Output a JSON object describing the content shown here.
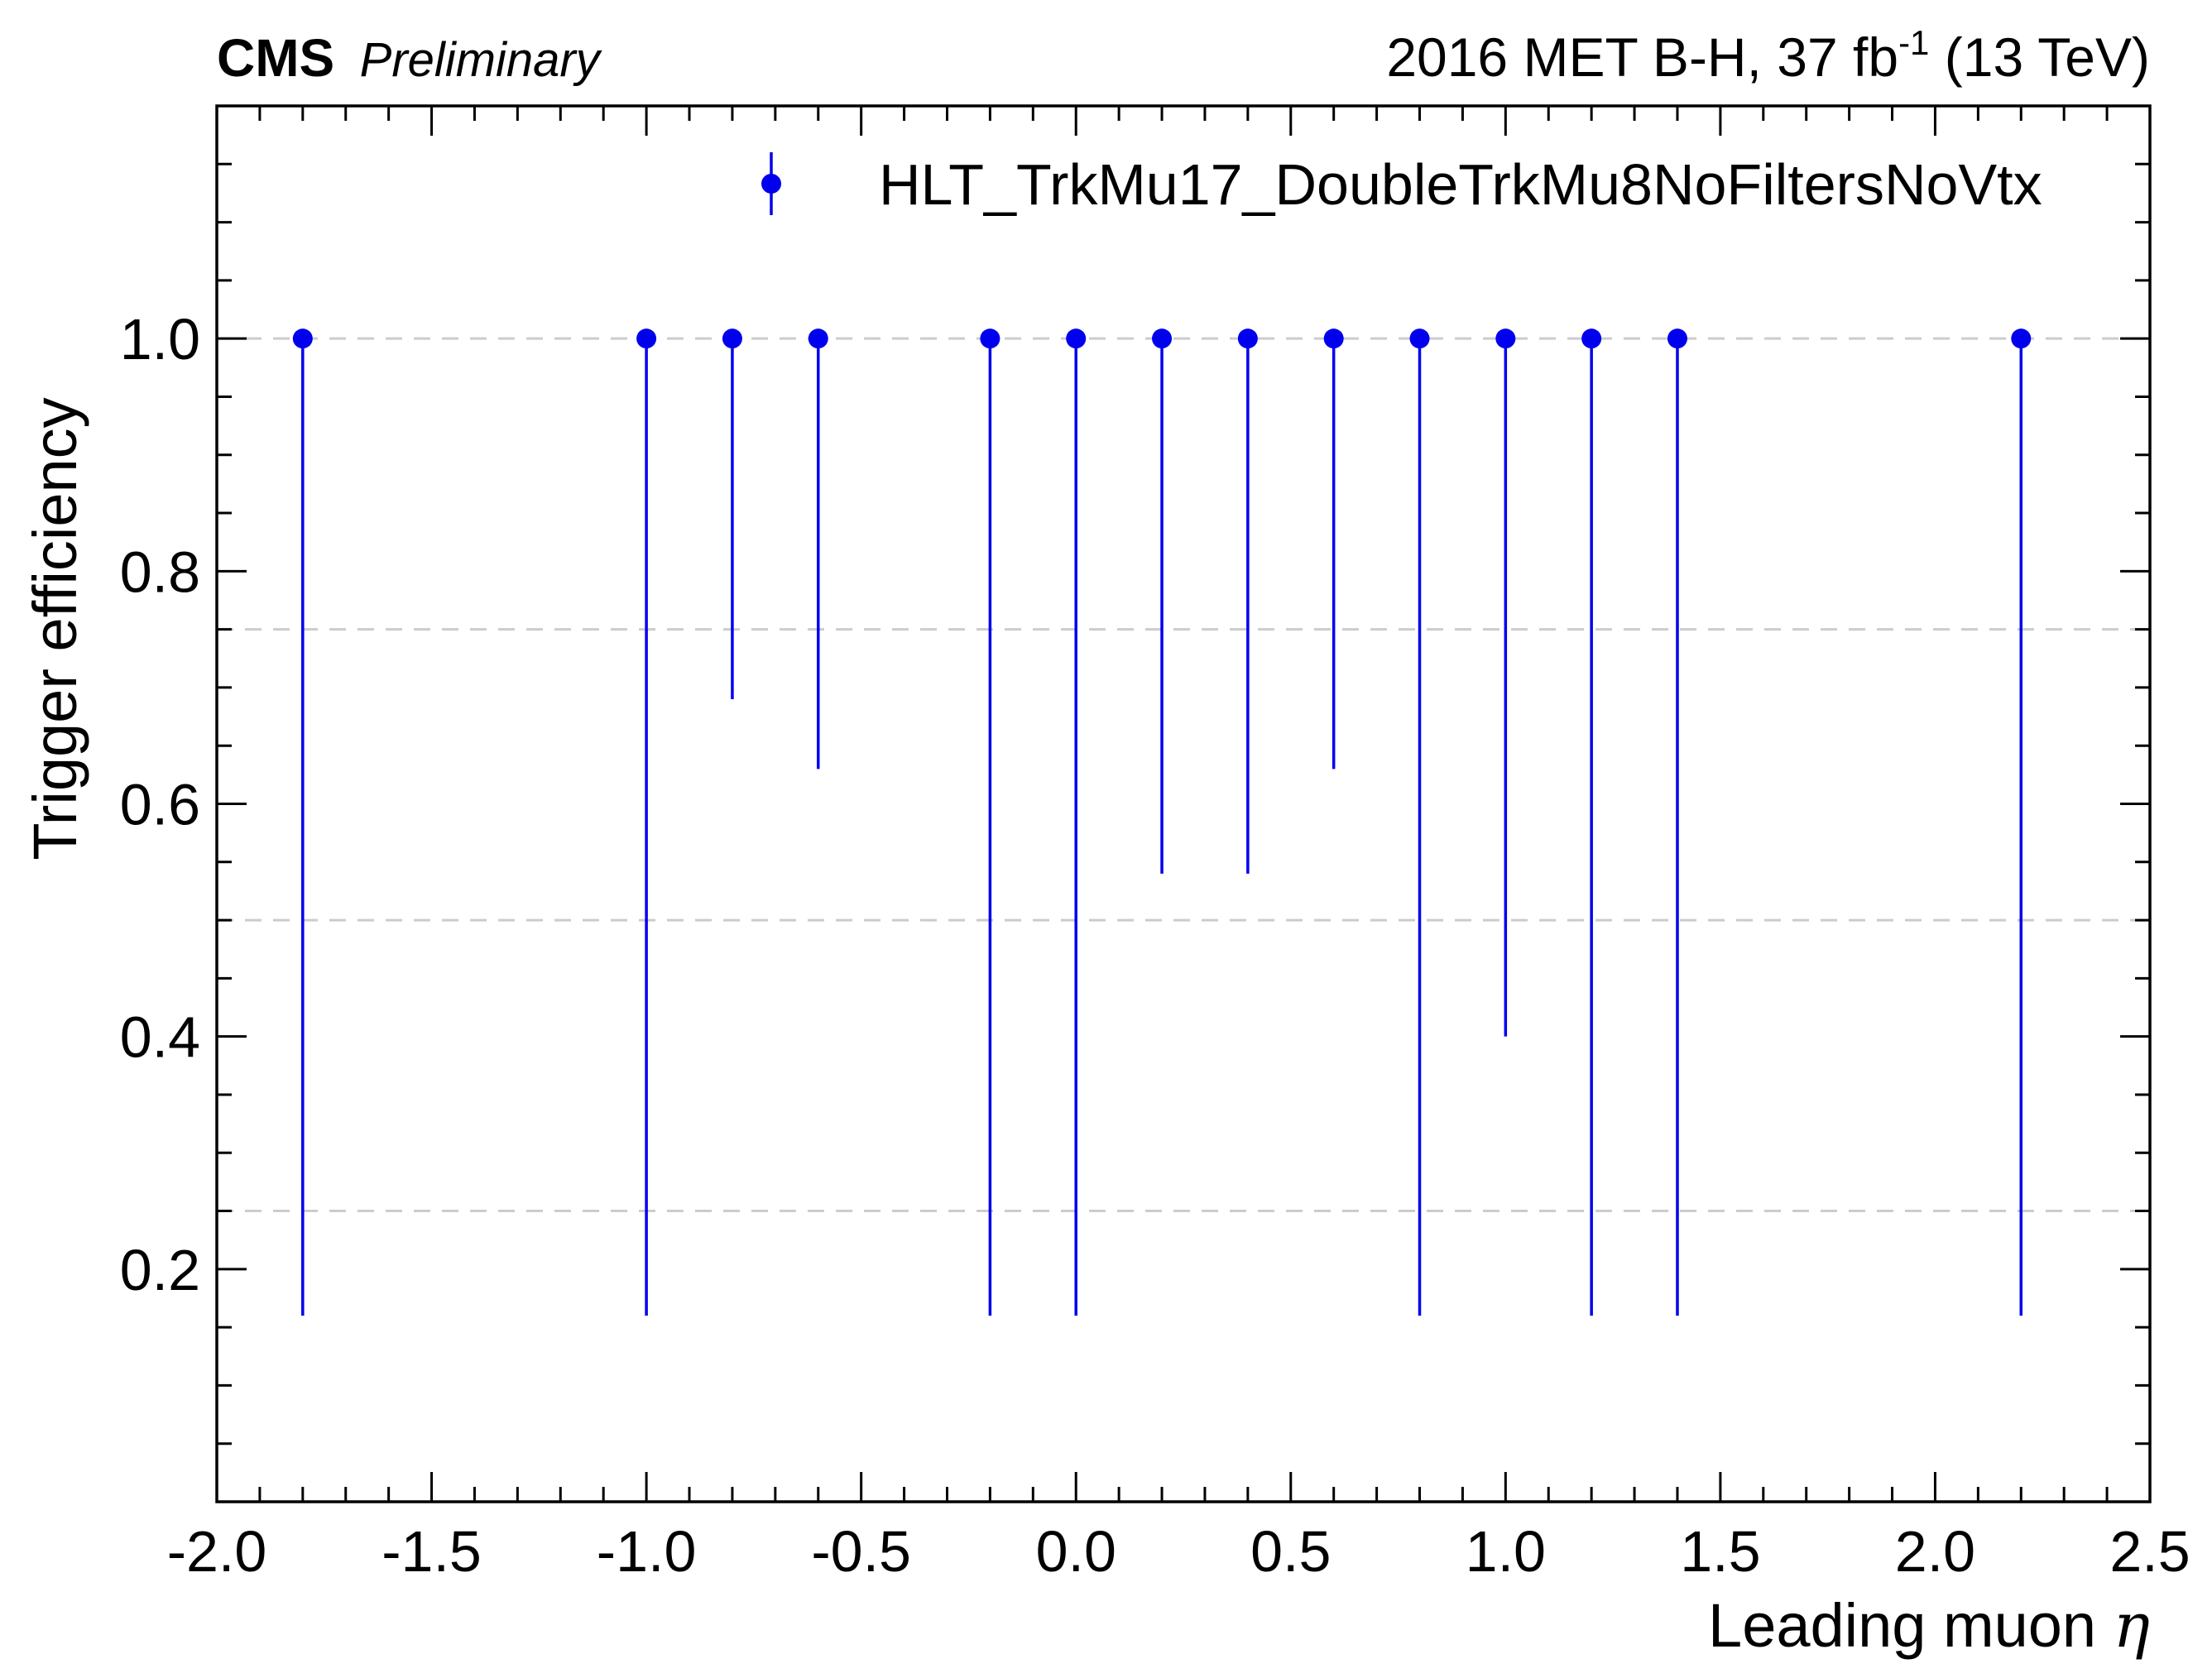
{
  "header": {
    "experiment": "CMS",
    "status": "Preliminary",
    "lumi_main": "2016 MET B-H, 37 fb",
    "lumi_sup": "-1",
    "lumi_tail": " (13 TeV)"
  },
  "chart_data": {
    "type": "scatter",
    "xlabel": "Leading muon ",
    "xlabel_symbol": "η",
    "ylabel": "Trigger efficiency",
    "xlim": [
      -2.0,
      2.5
    ],
    "ylim": [
      0.0,
      1.2
    ],
    "x_ticks": [
      "-2.0",
      "-1.5",
      "-1.0",
      "-0.5",
      "0.0",
      "0.5",
      "1.0",
      "1.5",
      "2.0",
      "2.5"
    ],
    "y_ticks": [
      "0.2",
      "0.4",
      "0.6",
      "0.8",
      "1.0"
    ],
    "grid": "dashed horizontal at 0.25, 0.5, 0.75, 1.0",
    "grid_lines": [
      0.25,
      0.5,
      0.75,
      1.0
    ],
    "legend_placement": "top-right",
    "colors": {
      "series": "#0000ee",
      "grid": "#cccccc",
      "axis": "#000000"
    },
    "series": [
      {
        "name": "HLT_TrkMu17_DoubleTrkMu8NoFiltersNoVtx",
        "points": [
          {
            "x": -1.8,
            "y": 1.0,
            "y_low": 0.16
          },
          {
            "x": -1.0,
            "y": 1.0,
            "y_low": 0.16
          },
          {
            "x": -0.8,
            "y": 1.0,
            "y_low": 0.69
          },
          {
            "x": -0.6,
            "y": 1.0,
            "y_low": 0.63
          },
          {
            "x": -0.2,
            "y": 1.0,
            "y_low": 0.16
          },
          {
            "x": 0.0,
            "y": 1.0,
            "y_low": 0.16
          },
          {
            "x": 0.2,
            "y": 1.0,
            "y_low": 0.54
          },
          {
            "x": 0.4,
            "y": 1.0,
            "y_low": 0.54
          },
          {
            "x": 0.6,
            "y": 1.0,
            "y_low": 0.63
          },
          {
            "x": 0.8,
            "y": 1.0,
            "y_low": 0.16
          },
          {
            "x": 1.0,
            "y": 1.0,
            "y_low": 0.4
          },
          {
            "x": 1.2,
            "y": 1.0,
            "y_low": 0.16
          },
          {
            "x": 1.4,
            "y": 1.0,
            "y_low": 0.16
          },
          {
            "x": 2.2,
            "y": 1.0,
            "y_low": 0.16
          }
        ]
      }
    ]
  }
}
